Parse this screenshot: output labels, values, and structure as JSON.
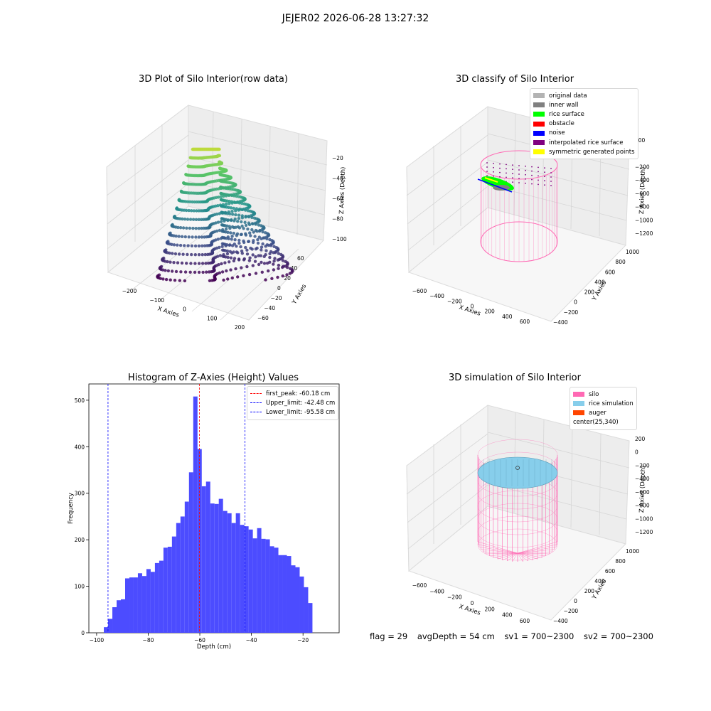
{
  "figure": {
    "suptitle": "JEJER02 2026-06-28 13:27:32",
    "footer": {
      "flag": "flag = 29",
      "avg_depth": "avgDepth = 54 cm",
      "sv1": "sv1 = 700~2300",
      "sv2": "sv2 = 700~2300"
    }
  },
  "chart_data": [
    {
      "type": "scatter3d",
      "title": "3D Plot of Silo Interior(row data)",
      "xlabel": "X Axies",
      "ylabel": "Y Axies",
      "zlabel": "Z Axies (Depth)",
      "x_ticks": [
        "−200",
        "−100",
        "0",
        "100",
        "200"
      ],
      "y_ticks": [
        "−60",
        "−40",
        "−20",
        "0",
        "20",
        "40",
        "60"
      ],
      "z_ticks": [
        "−100",
        "−80",
        "−60",
        "−40",
        "−20"
      ],
      "xlim": [
        -250,
        200
      ],
      "ylim": [
        -60,
        60
      ],
      "zlim": [
        -100,
        -10
      ],
      "colormap": "viridis",
      "grid": true
    },
    {
      "type": "scatter3d",
      "title": "3D classify of Silo Interior",
      "xlabel": "X Axies",
      "ylabel": "Y Axies",
      "zlabel": "Z Axies (Depth)",
      "x_ticks": [
        "−600",
        "−400",
        "−200",
        "0",
        "200",
        "400",
        "600"
      ],
      "y_ticks": [
        "−400",
        "−200",
        "0",
        "200",
        "400",
        "600",
        "800",
        "1000"
      ],
      "z_ticks": [
        "−1200",
        "−1000",
        "−800",
        "−600",
        "−400",
        "−200",
        "0",
        "200"
      ],
      "legend": [
        {
          "label": "original data",
          "color": "#b3b3b3"
        },
        {
          "label": "inner wall",
          "color": "#808080"
        },
        {
          "label": "rice surface",
          "color": "#00ff00"
        },
        {
          "label": "obstacle",
          "color": "#ff0000"
        },
        {
          "label": "noise",
          "color": "#0000ff"
        },
        {
          "label": "interpolated rice surface",
          "color": "#800080"
        },
        {
          "label": "symmetric generated points",
          "color": "#ffff00"
        }
      ],
      "legend_position": "top-right",
      "silo_color": "#ff69b4",
      "grid": true
    },
    {
      "type": "bar",
      "title": "Histogram of Z-Axies (Height) Values",
      "xlabel": "Depth (cm)",
      "ylabel": "Frequency",
      "xlim": [
        -103,
        -6
      ],
      "ylim": [
        0,
        535
      ],
      "x_ticks": [
        -100,
        -80,
        -60,
        -40,
        -20
      ],
      "x_tick_labels": [
        "−100",
        "−80",
        "−60",
        "−40",
        "−20"
      ],
      "y_ticks": [
        0,
        100,
        200,
        300,
        400,
        500
      ],
      "bin_start": -97.2,
      "bin_width": 1.65,
      "bar_color": "#4c4cff",
      "values": [
        12,
        30,
        55,
        70,
        72,
        117,
        119,
        119,
        128,
        122,
        137,
        131,
        150,
        155,
        183,
        185,
        207,
        236,
        250,
        282,
        345,
        508,
        395,
        315,
        325,
        278,
        277,
        288,
        262,
        257,
        236,
        257,
        232,
        229,
        222,
        203,
        225,
        202,
        201,
        186,
        183,
        167,
        167,
        165,
        145,
        141,
        121,
        98,
        64
      ],
      "reference_lines": [
        {
          "label": "first_peak: -60.18 cm",
          "x": -60.18,
          "color": "#ff0000"
        },
        {
          "label": "Upper_limit: -42.48 cm",
          "x": -42.48,
          "color": "#0000ff"
        },
        {
          "label": "Lower_limit: -95.58 cm",
          "x": -95.58,
          "color": "#0000ff"
        }
      ],
      "legend_position": "top-right"
    },
    {
      "type": "surface3d",
      "title": "3D simulation of Silo Interior",
      "xlabel": "X Axies",
      "ylabel": "Y Axies",
      "zlabel": "Z Axies (Depth)",
      "x_ticks": [
        "−600",
        "−400",
        "−200",
        "0",
        "200",
        "400",
        "600"
      ],
      "y_ticks": [
        "−400",
        "−200",
        "0",
        "200",
        "400",
        "600",
        "800",
        "1000"
      ],
      "z_ticks": [
        "−1200",
        "−1000",
        "−800",
        "−600",
        "−400",
        "−200",
        "0",
        "200"
      ],
      "legend": [
        {
          "label": "silo",
          "color": "#ff69b4"
        },
        {
          "label": "rice simulation",
          "color": "#87ceeb"
        },
        {
          "label": "auger",
          "color": "#ff4500"
        },
        {
          "label": "center(25,340)",
          "color": ""
        }
      ],
      "legend_position": "top-right",
      "grid": true
    }
  ]
}
